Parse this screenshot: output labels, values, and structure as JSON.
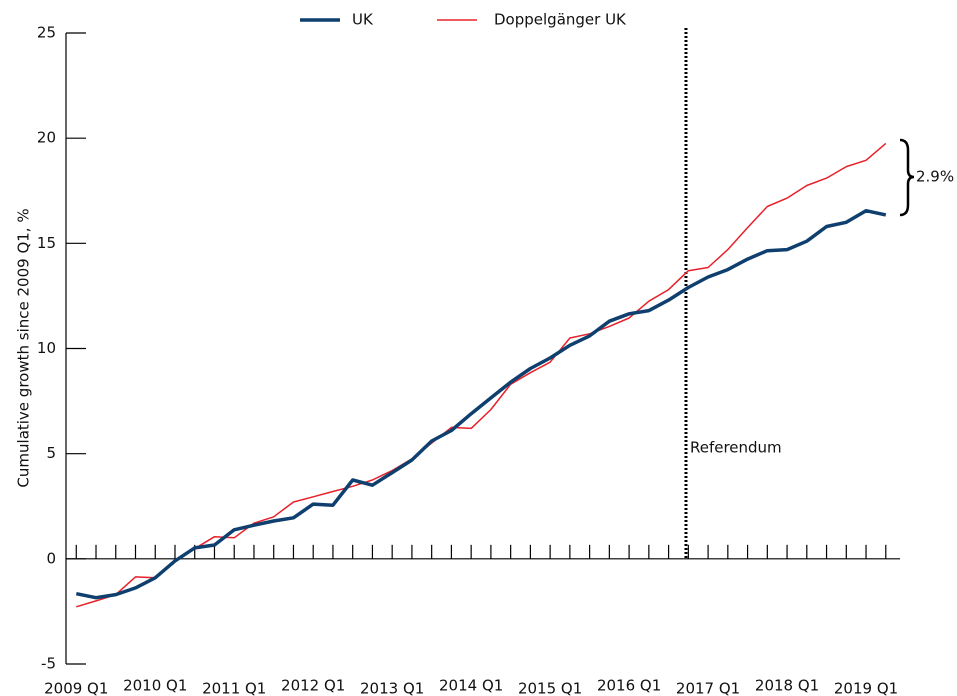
{
  "chart_data": {
    "type": "line",
    "y_label": "Cumulative growth since 2009 Q1, %",
    "x": [
      2009,
      2009.25,
      2009.5,
      2009.75,
      2010,
      2010.25,
      2010.5,
      2010.75,
      2011,
      2011.25,
      2011.5,
      2011.75,
      2012,
      2012.25,
      2012.5,
      2012.75,
      2013,
      2013.25,
      2013.5,
      2013.75,
      2014,
      2014.25,
      2014.5,
      2014.75,
      2015,
      2015.25,
      2015.5,
      2015.75,
      2016,
      2016.25,
      2016.5,
      2016.75,
      2017,
      2017.25,
      2017.5,
      2017.75,
      2018,
      2018.25,
      2018.5,
      2018.75,
      2019,
      2019.25
    ],
    "series": [
      {
        "name": "UK",
        "color": "#0f3f6e",
        "width": 3.5,
        "values": [
          -1.66,
          -1.85,
          -1.7,
          -1.38,
          -0.9,
          -0.1,
          0.52,
          0.66,
          1.38,
          1.6,
          1.8,
          1.95,
          2.6,
          2.55,
          3.75,
          3.5,
          4.1,
          4.7,
          5.6,
          6.1,
          6.9,
          7.65,
          8.4,
          9.05,
          9.55,
          10.15,
          10.6,
          11.3,
          11.65,
          11.8,
          12.3,
          12.9,
          13.4,
          13.75,
          14.25,
          14.65,
          14.7,
          15.1,
          15.8,
          16.0,
          16.55,
          16.35
        ]
      },
      {
        "name": "Doppelgänger UK",
        "color": "#e8202a",
        "width": 1.5,
        "values": [
          -2.28,
          -2.0,
          -1.7,
          -0.86,
          -0.9,
          -0.1,
          0.48,
          1.05,
          1.0,
          1.7,
          2.0,
          2.7,
          2.95,
          3.2,
          3.45,
          3.75,
          4.2,
          4.75,
          5.5,
          6.25,
          6.2,
          7.1,
          8.3,
          8.85,
          9.35,
          10.5,
          10.7,
          11.05,
          11.45,
          12.25,
          12.8,
          13.7,
          13.85,
          14.7,
          15.75,
          16.75,
          17.15,
          17.75,
          18.1,
          18.65,
          18.95,
          19.75
        ]
      }
    ],
    "xlim": [
      2008.87,
      2019.43
    ],
    "xticks": [
      {
        "value": 2009,
        "label": "2009 Q1"
      },
      {
        "value": 2010,
        "label": "2010 Q1"
      },
      {
        "value": 2011,
        "label": "2011 Q1"
      },
      {
        "value": 2012,
        "label": "2012 Q1"
      },
      {
        "value": 2013,
        "label": "2013 Q1"
      },
      {
        "value": 2014,
        "label": "2014 Q1"
      },
      {
        "value": 2015,
        "label": "2015 Q1"
      },
      {
        "value": 2016,
        "label": "2016 Q1"
      },
      {
        "value": 2017,
        "label": "2017 Q1"
      },
      {
        "value": 2018,
        "label": "2018 Q1"
      },
      {
        "value": 2019,
        "label": "2019 Q1"
      }
    ],
    "ylim": [
      -5,
      25
    ],
    "yticks": [
      -5,
      0,
      5,
      10,
      15,
      20,
      25
    ],
    "annotations": [
      {
        "text": "Referendum",
        "x": 2016.72
      },
      {
        "text": "2.9%"
      }
    ]
  }
}
